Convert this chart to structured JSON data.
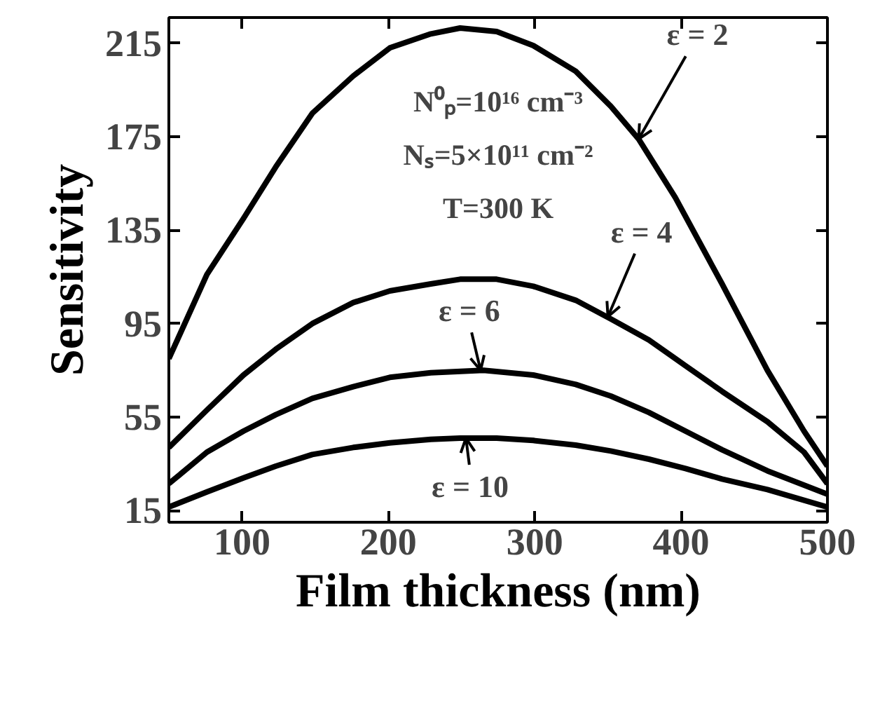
{
  "chart_data": {
    "type": "line",
    "xlabel": "Film thickness (nm)",
    "ylabel": "Sensitivity",
    "xlim": [
      50,
      500
    ],
    "xticks": [
      100,
      200,
      300,
      400,
      500
    ],
    "ylim": [
      10,
      226
    ],
    "yticks": [
      15,
      55,
      95,
      135,
      175,
      215
    ],
    "grid": false,
    "marker": "none",
    "line_style": "solid",
    "series": [
      {
        "color": "#000000",
        "x": [
          50,
          76,
          101,
          123,
          148,
          176,
          201,
          229,
          249,
          274,
          299,
          328,
          352,
          371,
          396,
          428,
          459,
          484,
          500
        ],
        "values": [
          80,
          116,
          140,
          162,
          185,
          201,
          213,
          219,
          221.5,
          220,
          214,
          203,
          188,
          174,
          149,
          112,
          75,
          49,
          34
        ]
      },
      {
        "color": "#000000",
        "x": [
          50,
          76,
          101,
          123,
          148,
          176,
          201,
          229,
          249,
          274,
          299,
          328,
          352,
          378,
          403,
          428,
          459,
          484,
          500
        ],
        "values": [
          42,
          58,
          73,
          84,
          95,
          104,
          109,
          112,
          114,
          114,
          111,
          105,
          97,
          88,
          77,
          66,
          53,
          40,
          26.5
        ]
      },
      {
        "color": "#000000",
        "x": [
          50,
          76,
          101,
          123,
          148,
          176,
          201,
          229,
          265,
          299,
          328,
          352,
          378,
          403,
          428,
          459,
          500
        ],
        "values": [
          26.5,
          40,
          49,
          56,
          63,
          68,
          72,
          74,
          75,
          73,
          69,
          64,
          57,
          49,
          41,
          32,
          22
        ]
      },
      {
        "color": "#000000",
        "x": [
          50,
          76,
          101,
          123,
          148,
          176,
          201,
          229,
          249,
          274,
          299,
          328,
          352,
          378,
          403,
          428,
          459,
          500
        ],
        "values": [
          16.5,
          23,
          29,
          34,
          39,
          42,
          44,
          45.5,
          46,
          46,
          45,
          43,
          40.5,
          37,
          33,
          28.5,
          24,
          16.5
        ]
      }
    ],
    "annotations": [
      {
        "text": "ε = 2",
        "x": 371,
        "y": 174
      },
      {
        "text": "ε = 4",
        "x": 350,
        "y": 98
      },
      {
        "text": "ε = 6",
        "x": 263,
        "y": 75
      },
      {
        "text": "ε = 10",
        "x": 253,
        "y": 46
      },
      "N⁰ₚ=10¹⁶ cm⁻³",
      "Nₛ=5×10¹¹ cm⁻²",
      "T=300 K"
    ]
  }
}
